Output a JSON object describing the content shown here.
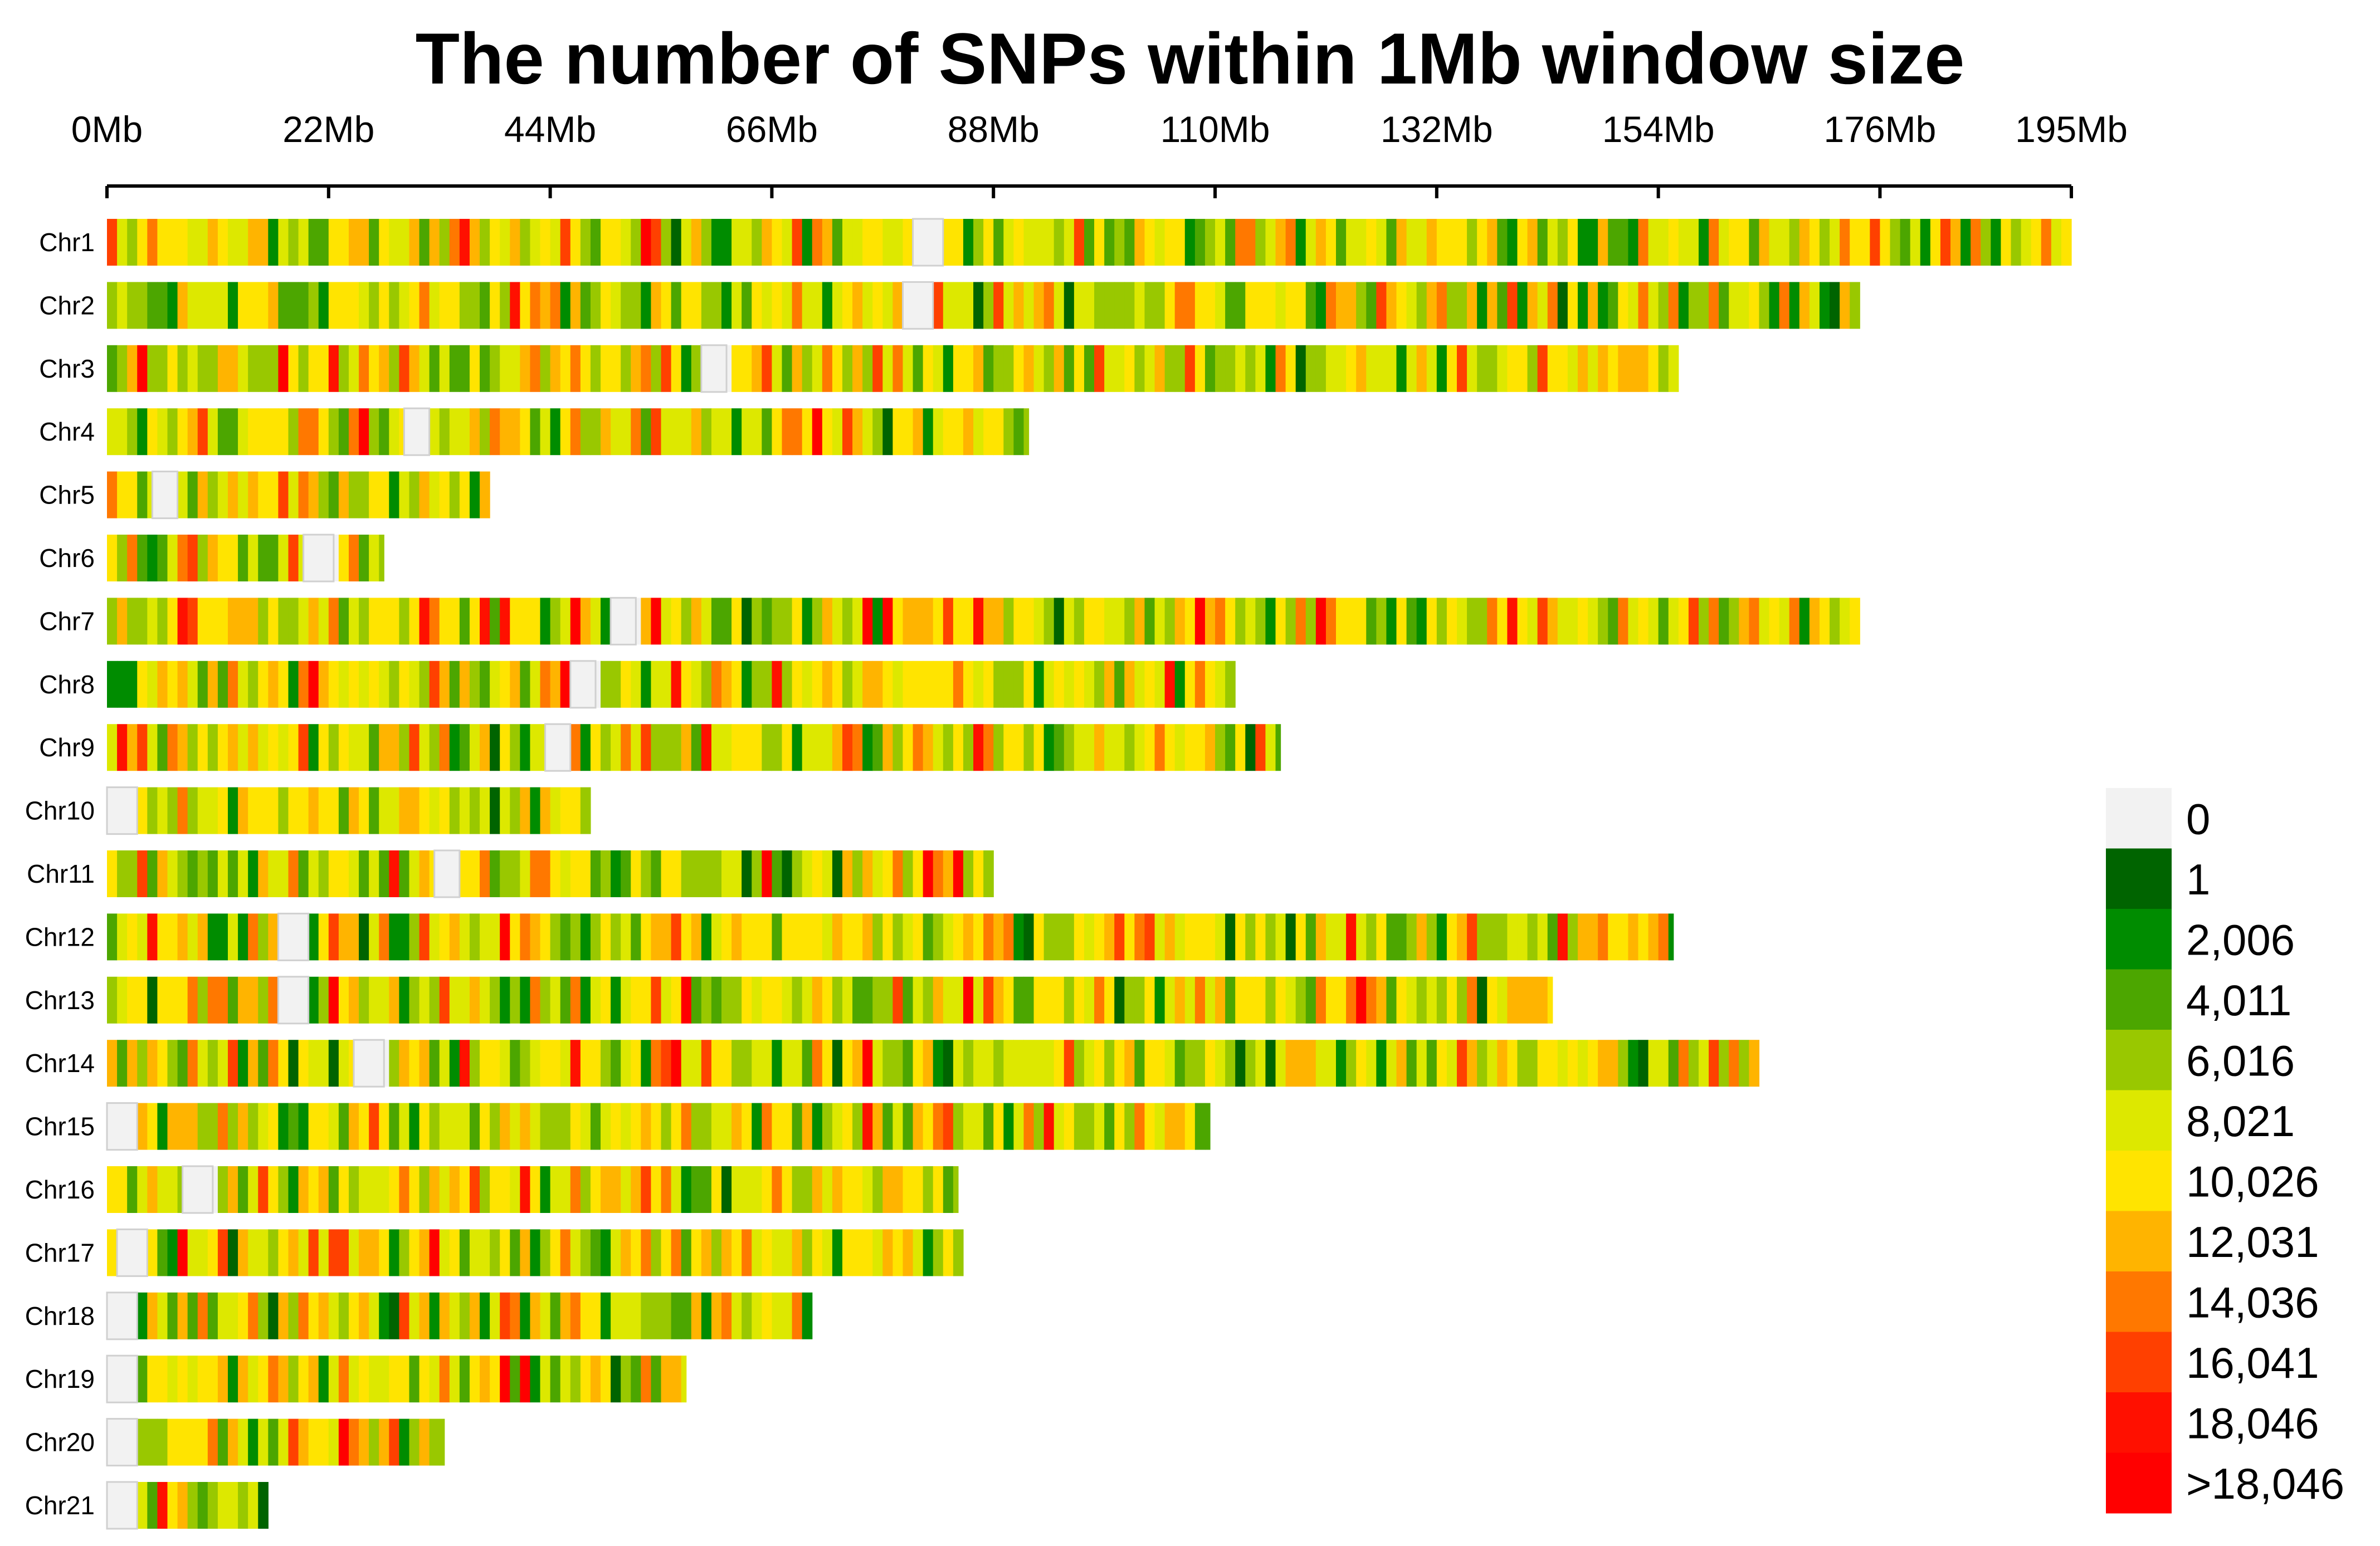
{
  "chart_data": {
    "type": "heatmap",
    "title": "The number of SNPs within 1Mb window size",
    "xlabel": "",
    "ylabel": "",
    "x_unit": "Mb",
    "xlim": [
      0,
      195
    ],
    "x_ticks": [
      {
        "value": 0,
        "label": "0Mb"
      },
      {
        "value": 22,
        "label": "22Mb"
      },
      {
        "value": 44,
        "label": "44Mb"
      },
      {
        "value": 66,
        "label": "66Mb"
      },
      {
        "value": 88,
        "label": "88Mb"
      },
      {
        "value": 110,
        "label": "110Mb"
      },
      {
        "value": 132,
        "label": "132Mb"
      },
      {
        "value": 154,
        "label": "154Mb"
      },
      {
        "value": 176,
        "label": "176Mb"
      },
      {
        "value": 195,
        "label": "195Mb"
      }
    ],
    "window_size_mb": 1,
    "chromosomes": [
      {
        "name": "Chr1",
        "length_mb": 195,
        "gaps_mb": [
          [
            80,
            83
          ]
        ]
      },
      {
        "name": "Chr2",
        "length_mb": 174,
        "gaps_mb": [
          [
            79,
            82
          ]
        ]
      },
      {
        "name": "Chr3",
        "length_mb": 156,
        "gaps_mb": [
          [
            59,
            61.5
          ]
        ]
      },
      {
        "name": "Chr4",
        "length_mb": 91.5,
        "gaps_mb": [
          [
            29.5,
            32
          ]
        ]
      },
      {
        "name": "Chr5",
        "length_mb": 38,
        "gaps_mb": [
          [
            4.5,
            7
          ]
        ]
      },
      {
        "name": "Chr6",
        "length_mb": 27.5,
        "gaps_mb": [
          [
            19.5,
            22.5
          ]
        ]
      },
      {
        "name": "Chr7",
        "length_mb": 174,
        "gaps_mb": [
          [
            50,
            52.5
          ]
        ]
      },
      {
        "name": "Chr8",
        "length_mb": 112,
        "gaps_mb": [
          [
            46,
            48.5
          ]
        ]
      },
      {
        "name": "Chr9",
        "length_mb": 116.5,
        "gaps_mb": [
          [
            43.5,
            46
          ]
        ]
      },
      {
        "name": "Chr10",
        "length_mb": 48,
        "gaps_mb": [
          [
            0,
            3
          ]
        ]
      },
      {
        "name": "Chr11",
        "length_mb": 88,
        "gaps_mb": [
          [
            32.5,
            35
          ]
        ]
      },
      {
        "name": "Chr12",
        "length_mb": 155.5,
        "gaps_mb": [
          [
            17,
            20
          ]
        ]
      },
      {
        "name": "Chr13",
        "length_mb": 143.5,
        "gaps_mb": [
          [
            17,
            20
          ]
        ]
      },
      {
        "name": "Chr14",
        "length_mb": 164,
        "gaps_mb": [
          [
            24.5,
            27.5
          ]
        ]
      },
      {
        "name": "Chr15",
        "length_mb": 109.5,
        "gaps_mb": [
          [
            0,
            3
          ]
        ]
      },
      {
        "name": "Chr16",
        "length_mb": 84.5,
        "gaps_mb": [
          [
            7.5,
            10.5
          ]
        ]
      },
      {
        "name": "Chr17",
        "length_mb": 85,
        "gaps_mb": [
          [
            1,
            4
          ]
        ]
      },
      {
        "name": "Chr18",
        "length_mb": 70,
        "gaps_mb": [
          [
            0,
            3
          ]
        ]
      },
      {
        "name": "Chr19",
        "length_mb": 57.5,
        "gaps_mb": [
          [
            0,
            3
          ]
        ]
      },
      {
        "name": "Chr20",
        "length_mb": 33.5,
        "gaps_mb": [
          [
            0,
            3
          ]
        ]
      },
      {
        "name": "Chr21",
        "length_mb": 16,
        "gaps_mb": [
          [
            0,
            3
          ]
        ]
      }
    ],
    "legend": [
      {
        "label": "0",
        "color": "#f2f2f2"
      },
      {
        "label": "1",
        "color": "#006400"
      },
      {
        "label": "2,006",
        "color": "#008c00"
      },
      {
        "label": "4,011",
        "color": "#4ca600"
      },
      {
        "label": "6,016",
        "color": "#99c800"
      },
      {
        "label": "8,021",
        "color": "#dde800"
      },
      {
        "label": "10,026",
        "color": "#ffe400"
      },
      {
        "label": "12,031",
        "color": "#ffb400"
      },
      {
        "label": "14,036",
        "color": "#ff7800"
      },
      {
        "label": "16,041",
        "color": "#ff4000"
      },
      {
        "label": "18,046",
        "color": "#ff1000"
      },
      {
        "label": ">18,046",
        "color": "#ff0000"
      }
    ],
    "legend_position": "right-bottom"
  }
}
